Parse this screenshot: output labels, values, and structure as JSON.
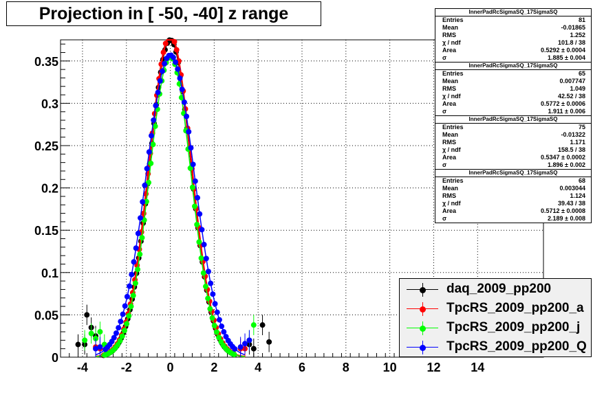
{
  "title": "Projection in [ -50, -40] z range",
  "statboxes": [
    {
      "name": "InnerPadRcSigmaSQ_17SigmaSQ",
      "rows": [
        {
          "k": "Entries",
          "v": "81"
        },
        {
          "k": "Mean",
          "v": "-0.01865"
        },
        {
          "k": "RMS",
          "v": "1.252"
        },
        {
          "k": "χ  / ndf",
          "v": "101.8 / 38"
        },
        {
          "k": "Area",
          "v": "0.5292 ± 0.0004"
        },
        {
          "k": "σ",
          "v": "1.885 ± 0.004"
        }
      ]
    },
    {
      "name": "InnerPadRcSigmaSQ_17SigmaSQ",
      "rows": [
        {
          "k": "Entries",
          "v": "65"
        },
        {
          "k": "Mean",
          "v": "0.007747"
        },
        {
          "k": "RMS",
          "v": "1.049"
        },
        {
          "k": "χ  / ndf",
          "v": "42.52 / 38"
        },
        {
          "k": "Area",
          "v": "0.5772 ± 0.0006"
        },
        {
          "k": "σ",
          "v": "1.911 ± 0.006"
        }
      ]
    },
    {
      "name": "InnerPadRcSigmaSQ_17SigmaSQ",
      "rows": [
        {
          "k": "Entries",
          "v": "75"
        },
        {
          "k": "Mean",
          "v": "-0.01322"
        },
        {
          "k": "RMS",
          "v": "1.171"
        },
        {
          "k": "χ  / ndf",
          "v": "158.5 / 38"
        },
        {
          "k": "Area",
          "v": "0.5347 ± 0.0002"
        },
        {
          "k": "σ",
          "v": "1.896 ± 0.002"
        }
      ]
    },
    {
      "name": "InnerPadRcSigmaSQ_17SigmaSQ",
      "rows": [
        {
          "k": "Entries",
          "v": "68"
        },
        {
          "k": "Mean",
          "v": "0.003044"
        },
        {
          "k": "RMS",
          "v": "1.124"
        },
        {
          "k": "χ  / ndf",
          "v": "39.43 / 38"
        },
        {
          "k": "Area",
          "v": "0.5712 ± 0.0008"
        },
        {
          "k": "σ",
          "v": "2.189 ± 0.008"
        }
      ]
    }
  ],
  "chart_data": {
    "type": "scatter",
    "title": "Projection in [ -50, -40] z range",
    "xlabel": "",
    "ylabel": "",
    "xlim": [
      -5.0,
      17.0
    ],
    "ylim": [
      0,
      0.375
    ],
    "x_ticks": [
      -4,
      -2,
      0,
      2,
      4,
      6,
      8,
      10,
      12,
      14
    ],
    "y_ticks": [
      0,
      0.05,
      0.1,
      0.15,
      0.2,
      0.25,
      0.3,
      0.35
    ],
    "grid": true,
    "legend_position": "bottom-right",
    "series": [
      {
        "name": "daq_2009_pp200",
        "color": "#000000",
        "fit": {
          "area": 0.5292,
          "sigma": 1.885,
          "mean": 0.0,
          "peak": 0.375
        },
        "points": [
          [
            -4.2,
            0.015
          ],
          [
            -3.9,
            0.015
          ],
          [
            -3.8,
            0.05
          ],
          [
            -3.6,
            0.035
          ],
          [
            -3.4,
            0.025
          ],
          [
            -3.2,
            0.012
          ],
          [
            3.6,
            0.015
          ],
          [
            3.8,
            0.01
          ],
          [
            4.2,
            0.038
          ],
          [
            4.5,
            0.018
          ]
        ]
      },
      {
        "name": "TpcRS_2009_pp200_a",
        "color": "#ff0000",
        "fit": {
          "area": 0.5772,
          "sigma": 1.911,
          "mean": 0.0,
          "peak": 0.38
        },
        "points": [
          [
            -3.4,
            0.012
          ],
          [
            -3.2,
            0.01
          ],
          [
            3.2,
            0.01
          ],
          [
            3.4,
            0.01
          ]
        ]
      },
      {
        "name": "TpcRS_2009_pp200_j",
        "color": "#00ff00",
        "fit": {
          "area": 0.5347,
          "sigma": 1.896,
          "mean": 0.0,
          "peak": 0.355
        },
        "points": [
          [
            -3.9,
            0.02
          ],
          [
            -3.6,
            0.028
          ],
          [
            -3.4,
            0.022
          ],
          [
            -3.2,
            0.03
          ],
          [
            -3.0,
            0.015
          ],
          [
            3.6,
            0.02
          ],
          [
            3.8,
            0.038
          ]
        ]
      },
      {
        "name": "TpcRS_2009_pp200_Q",
        "color": "#0000ff",
        "fit": {
          "area": 0.5712,
          "sigma": 2.189,
          "mean": 0.0,
          "peak": 0.357
        },
        "points": [
          [
            -3.4,
            0.01
          ],
          [
            -3.2,
            0.012
          ],
          [
            3.2,
            0.012
          ],
          [
            3.4,
            0.016
          ],
          [
            3.6,
            0.02
          ]
        ]
      }
    ]
  },
  "legend": [
    {
      "label": "daq_2009_pp200",
      "color": "#000000"
    },
    {
      "label": "TpcRS_2009_pp200_a",
      "color": "#ff0000"
    },
    {
      "label": "TpcRS_2009_pp200_j",
      "color": "#00ff00"
    },
    {
      "label": "TpcRS_2009_pp200_Q",
      "color": "#0000ff"
    }
  ]
}
